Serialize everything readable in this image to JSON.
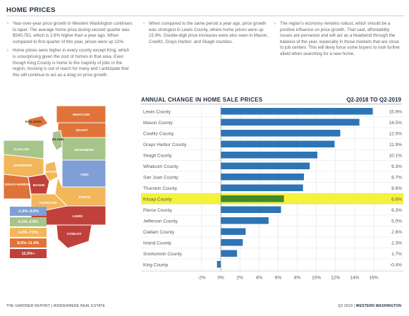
{
  "section_title": "HOME PRICES",
  "columns": [
    [
      "Year-over-year price growth in Western Washington continues to taper. The average home price during second quarter was $540,781, which is 2.8% higher than a year ago. When compared to first quarter of this year, prices were up 12%.",
      "Home prices were higher in every county except King, which is unsurprising given the cost of homes in that area. Even though King County is home to the majority of jobs in the region, housing is out of reach for many and I anticipate that this will continue to act as a drag on price growth."
    ],
    [
      "When compared to the same period a year ago, price growth was strongest in Lewis County, where home prices were up 15.9%. Double-digit price increases were also seen in Mason, Cowlitz, Grays Harbor, and Skagit counties."
    ],
    [
      "The region's economy remains robust, which should be a positive influence on price growth. That said, affordability issues are pervasive and will act as a headwind through the balance of the year, especially in those markets that are close to job centers. This will likely force some buyers to look further afield when searching for a new home."
    ]
  ],
  "map": {
    "counties": [
      "WHATCOM",
      "SAN JUAN",
      "SKAGIT",
      "ISLAND",
      "CLALLAM",
      "SNOHOMISH",
      "JEFFERSON",
      "KITSAP",
      "KING",
      "GRAYS HARBOR",
      "MASON",
      "PIERCE",
      "THURSTON",
      "LEWIS",
      "COWLITZ"
    ],
    "legend": [
      {
        "label": "-1.0%–0.0%",
        "color": "#7f9fd6"
      },
      {
        "label": "0.1%–3.9%",
        "color": "#a7c58a"
      },
      {
        "label": "4.0%–7.9%",
        "color": "#f2b75a"
      },
      {
        "label": "8.0%–11.9%",
        "color": "#e0733a"
      },
      {
        "label": "12.0%+",
        "color": "#c0413c"
      }
    ]
  },
  "chart_data": {
    "type": "bar",
    "orientation": "horizontal",
    "title": "ANNUAL CHANGE IN HOME SALE PRICES",
    "range_label": "Q2-2018 TO Q2-2019",
    "categories": [
      "Lewis County",
      "Mason County",
      "Cowlitz County",
      "Grays Harbor County",
      "Skagit County",
      "Whatcom County",
      "San Juan County",
      "Thurston County",
      "Kitsap County",
      "Pierce County",
      "Jefferson County",
      "Clallam County",
      "Island County",
      "Snohomish County",
      "King County"
    ],
    "values": [
      15.9,
      14.5,
      12.5,
      11.9,
      10.1,
      9.3,
      8.7,
      8.6,
      6.6,
      6.3,
      5.0,
      2.6,
      2.3,
      1.7,
      -0.4
    ],
    "value_labels": [
      "15.9%",
      "14.5%",
      "12.5%",
      "11.9%",
      "10.1%",
      "9.3%",
      "8.7%",
      "8.6%",
      "6.6%",
      "6.3%",
      "5.0%",
      "2.6%",
      "2.3%",
      "1.7%",
      "-0.4%"
    ],
    "highlight": "Kitsap County",
    "xlim": [
      -2,
      16
    ],
    "xticks": [
      "-2%",
      "0%",
      "2%",
      "4%",
      "6%",
      "8%",
      "10%",
      "12%",
      "14%",
      "16%"
    ],
    "bar_color": "#2e75b6",
    "highlight_bar_color": "#3f8a2f",
    "highlight_band_color": "#f4f23a",
    "grid": true
  },
  "footer": {
    "left": "THE GARDNER REPORT  |  WINDERMERE REAL ESTATE",
    "right_pre": "Q2 2019  |  ",
    "right_bold": "WESTERN WASHINGTON"
  }
}
